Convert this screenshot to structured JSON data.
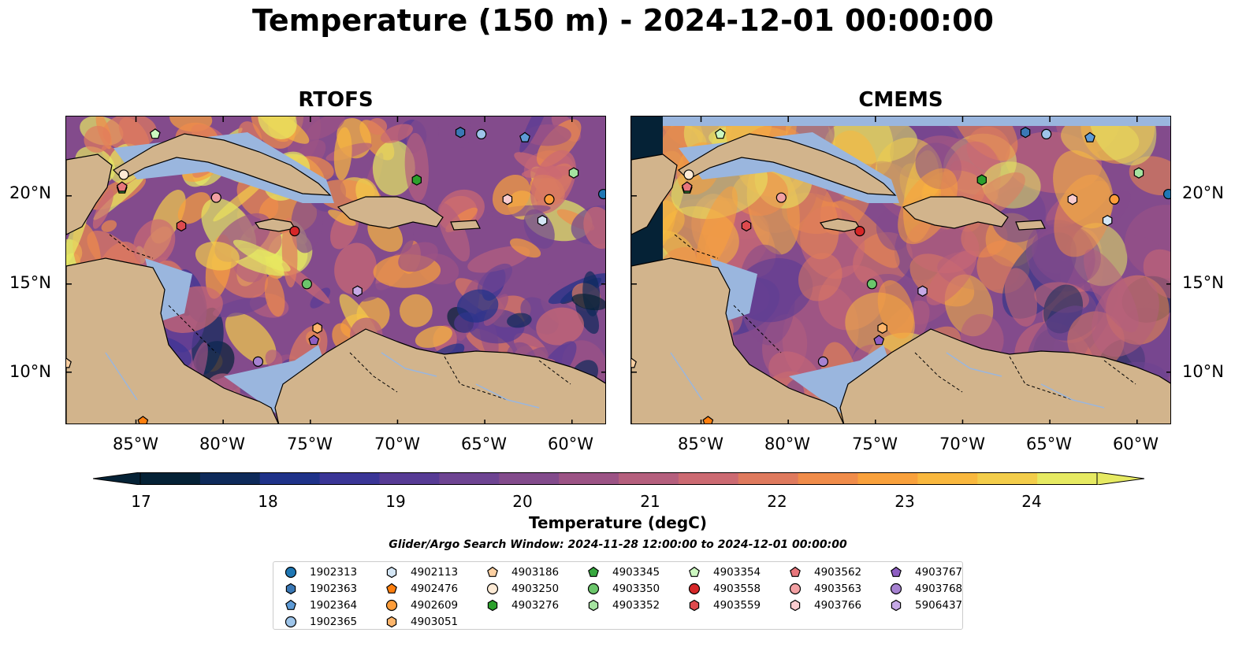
{
  "title": "Temperature (150 m) - 2024-12-01 00:00:00",
  "panels": [
    {
      "title": "RTOFS"
    },
    {
      "title": "CMEMS"
    }
  ],
  "x_ticks": [
    "85°W",
    "80°W",
    "75°W",
    "70°W",
    "65°W",
    "60°W"
  ],
  "y_ticks": [
    "20°N",
    "15°N",
    "10°N"
  ],
  "chart_data": {
    "type": "heatmap",
    "variable": "Temperature (150 m)",
    "extent": {
      "lon": [
        -89.0,
        -58.0
      ],
      "lat": [
        7.0,
        24.5
      ]
    },
    "colorbar": {
      "label": "Temperature (degC)",
      "min": 17,
      "max": 24.5,
      "step": 0.5,
      "ticks": [
        "17",
        "18",
        "19",
        "20",
        "21",
        "22",
        "23",
        "24"
      ],
      "colors": [
        "#052236",
        "#0e2a5a",
        "#1f3289",
        "#3a3596",
        "#573b95",
        "#6e4492",
        "#834b8c",
        "#9c5385",
        "#b55f7d",
        "#cc6a72",
        "#df7a5e",
        "#f08c4a",
        "#f9a13c",
        "#f9b83e",
        "#f3cd4a",
        "#e6ea62"
      ]
    },
    "observation_window": "Glider/Argo Search Window: 2024-11-28 12:00:00 to 2024-12-01 00:00:00"
  },
  "colors": {
    "land": "#d2b48c",
    "shelf": "#9ab6de",
    "deep": "#052236"
  },
  "platforms": [
    {
      "id": "1902313",
      "marker": "circle",
      "color": "#1f77b4",
      "lon": -58.2,
      "lat": 20.1
    },
    {
      "id": "1902363",
      "marker": "hexagon",
      "color": "#3a78b5",
      "lon": -66.4,
      "lat": 23.6
    },
    {
      "id": "1902364",
      "marker": "pentagon",
      "color": "#5e9bd6",
      "lon": -62.7,
      "lat": 23.3
    },
    {
      "id": "1902365",
      "marker": "circle",
      "color": "#9ec5ea",
      "lon": -65.2,
      "lat": 23.5
    },
    {
      "id": "4902113",
      "marker": "hexagon",
      "color": "#d4e6f5",
      "lon": -61.7,
      "lat": 18.6
    },
    {
      "id": "4902476",
      "marker": "pentagon",
      "color": "#ff7f0e",
      "lon": -84.6,
      "lat": 7.2
    },
    {
      "id": "4902609",
      "marker": "circle",
      "color": "#fd9d3a",
      "lon": -61.3,
      "lat": 19.8
    },
    {
      "id": "4903051",
      "marker": "hexagon",
      "color": "#fdb56b",
      "lon": -74.6,
      "lat": 12.5
    },
    {
      "id": "4903186",
      "marker": "pentagon",
      "color": "#fdd0a2",
      "lon": -89.0,
      "lat": 10.5
    },
    {
      "id": "4903250",
      "marker": "circle",
      "color": "#feebd6",
      "lon": -85.7,
      "lat": 21.2
    },
    {
      "id": "4903276",
      "marker": "hexagon",
      "color": "#2ca02c",
      "lon": -68.9,
      "lat": 20.9
    },
    {
      "id": "4903345",
      "marker": "pentagon",
      "color": "#37a83e",
      "lon": -85.8,
      "lat": 20.4
    },
    {
      "id": "4903350",
      "marker": "circle",
      "color": "#6bc66b",
      "lon": -75.2,
      "lat": 15.0
    },
    {
      "id": "4903352",
      "marker": "hexagon",
      "color": "#a5e3a0",
      "lon": -59.9,
      "lat": 21.3
    },
    {
      "id": "4903354",
      "marker": "pentagon",
      "color": "#ccf8c0",
      "lon": -83.9,
      "lat": 23.5
    },
    {
      "id": "4903558",
      "marker": "circle",
      "color": "#d62728",
      "lon": -75.9,
      "lat": 18.0
    },
    {
      "id": "4903559",
      "marker": "hexagon",
      "color": "#de4a4e",
      "lon": -82.4,
      "lat": 18.3
    },
    {
      "id": "4903562",
      "marker": "pentagon",
      "color": "#e8767b",
      "lon": -85.8,
      "lat": 20.5
    },
    {
      "id": "4903563",
      "marker": "circle",
      "color": "#f2a0a3",
      "lon": -80.4,
      "lat": 19.9
    },
    {
      "id": "4903766",
      "marker": "hexagon",
      "color": "#f9cccf",
      "lon": -63.7,
      "lat": 19.8
    },
    {
      "id": "4903767",
      "marker": "pentagon",
      "color": "#8e5ec2",
      "lon": -74.8,
      "lat": 11.8
    },
    {
      "id": "4903768",
      "marker": "circle",
      "color": "#a682d1",
      "lon": -78.0,
      "lat": 10.6
    },
    {
      "id": "5906437",
      "marker": "hexagon",
      "color": "#c6a9e6",
      "lon": -72.3,
      "lat": 14.6
    }
  ]
}
